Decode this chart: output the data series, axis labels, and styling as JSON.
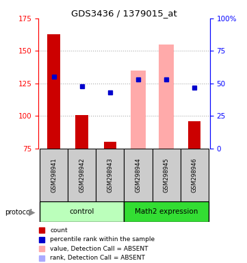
{
  "title": "GDS3436 / 1379015_at",
  "samples": [
    "GSM298941",
    "GSM298942",
    "GSM298943",
    "GSM298944",
    "GSM298945",
    "GSM298946"
  ],
  "group_labels": [
    "control",
    "Math2 expression"
  ],
  "group_colors": [
    "#bbffbb",
    "#33dd33"
  ],
  "bar_bottom": 75,
  "ylim_left": [
    75,
    175
  ],
  "ylim_right": [
    0,
    100
  ],
  "yticks_left": [
    75,
    100,
    125,
    150,
    175
  ],
  "yticks_right": [
    0,
    25,
    50,
    75,
    100
  ],
  "ytick_labels_right": [
    "0",
    "25",
    "50",
    "75",
    "100%"
  ],
  "red_bar_heights": [
    163,
    101,
    80,
    null,
    null,
    96
  ],
  "red_bar_color": "#cc0000",
  "pink_bar_heights": [
    null,
    null,
    null,
    135,
    155,
    null
  ],
  "pink_bar_color": "#ffaaaa",
  "blue_square_values": [
    130,
    123,
    118,
    128,
    128,
    122
  ],
  "blue_square_color": "#0000cc",
  "light_blue_square_values": [
    null,
    null,
    null,
    128,
    128,
    null
  ],
  "light_blue_square_color": "#aaaaff",
  "grid_color": "#aaaaaa",
  "sample_box_color": "#cccccc",
  "legend_items": [
    {
      "color": "#cc0000",
      "label": "count"
    },
    {
      "color": "#0000cc",
      "label": "percentile rank within the sample"
    },
    {
      "color": "#ffaaaa",
      "label": "value, Detection Call = ABSENT"
    },
    {
      "color": "#aaaaff",
      "label": "rank, Detection Call = ABSENT"
    }
  ]
}
